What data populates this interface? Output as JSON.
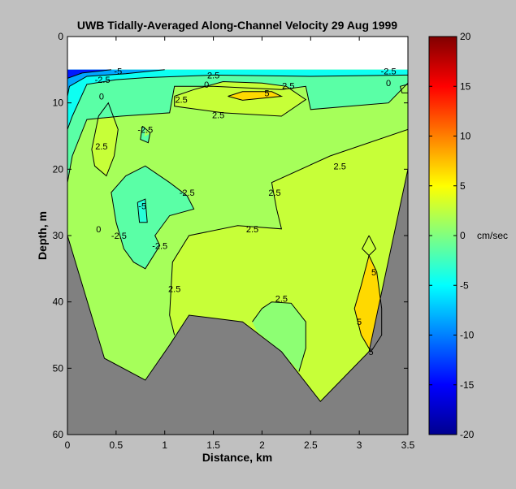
{
  "chart_data": {
    "type": "contour",
    "title": "UWB   Tidally-Averaged  Along-Channel Velocity   29 Aug 1999",
    "xlabel": "Distance, km",
    "ylabel": "Depth, m",
    "xlim": [
      0,
      3.5
    ],
    "ylim": [
      60,
      0
    ],
    "y_reversed": true,
    "x_ticks": [
      "0",
      "0.5",
      "1",
      "1.5",
      "2",
      "2.5",
      "3",
      "3.5"
    ],
    "y_ticks": [
      "0",
      "10",
      "20",
      "30",
      "40",
      "50",
      "60"
    ],
    "x_tick_values": [
      0,
      0.5,
      1,
      1.5,
      2,
      2.5,
      3,
      3.5
    ],
    "y_tick_values": [
      0,
      10,
      20,
      30,
      40,
      50,
      60
    ],
    "colorbar": {
      "label": "cm/sec",
      "range": [
        -20,
        20
      ],
      "ticks": [
        "20",
        "15",
        "10",
        "5",
        "0",
        "-5",
        "-10",
        "-15",
        "-20"
      ],
      "tick_values": [
        20,
        15,
        10,
        5,
        0,
        -5,
        -10,
        -15,
        -20
      ]
    },
    "contour_levels": [
      -5,
      -2.5,
      0,
      2.5,
      5
    ],
    "data_top_depth": 5,
    "bottom_profile": [
      [
        0,
        30
      ],
      [
        0.38,
        48.5
      ],
      [
        0.8,
        51.8
      ],
      [
        1.05,
        46.5
      ],
      [
        1.25,
        42
      ],
      [
        1.8,
        43
      ],
      [
        2.2,
        47.5
      ],
      [
        2.6,
        55
      ],
      [
        3.1,
        47.5
      ],
      [
        3.5,
        20
      ]
    ],
    "regions": [
      {
        "value": 1.5,
        "points": [
          [
            0,
            5
          ],
          [
            3.5,
            5
          ],
          [
            3.5,
            20
          ],
          [
            3.1,
            47.5
          ],
          [
            2.6,
            55
          ],
          [
            2.2,
            47.5
          ],
          [
            1.8,
            43
          ],
          [
            1.25,
            42
          ],
          [
            1.05,
            46.5
          ],
          [
            0.8,
            51.8
          ],
          [
            0.38,
            48.5
          ],
          [
            0,
            30
          ]
        ]
      },
      {
        "value": 2.8,
        "points": [
          [
            3.5,
            14
          ],
          [
            2.7,
            18
          ],
          [
            2.1,
            22
          ],
          [
            2.15,
            26
          ],
          [
            2.2,
            29
          ],
          [
            1.75,
            28.5
          ],
          [
            1.25,
            30
          ],
          [
            1.08,
            34
          ],
          [
            1.05,
            42
          ],
          [
            1.1,
            45
          ],
          [
            1.25,
            42
          ],
          [
            1.8,
            43
          ],
          [
            2.2,
            47.5
          ],
          [
            2.6,
            55
          ],
          [
            3.1,
            47.5
          ],
          [
            3.5,
            20
          ]
        ]
      },
      {
        "value": 0.5,
        "points": [
          [
            1.9,
            43
          ],
          [
            2.0,
            41
          ],
          [
            2.1,
            40
          ],
          [
            2.3,
            40.2
          ],
          [
            2.45,
            43
          ],
          [
            2.45,
            47
          ],
          [
            2.38,
            50.5
          ],
          [
            2.2,
            47.5
          ],
          [
            1.95,
            44.5
          ]
        ]
      },
      {
        "value": 6.5,
        "points": [
          [
            3.1,
            33
          ],
          [
            3.18,
            35.5
          ],
          [
            3.23,
            41
          ],
          [
            3.23,
            45
          ],
          [
            3.12,
            47.5
          ],
          [
            3.02,
            45
          ],
          [
            2.95,
            41
          ],
          [
            3.02,
            37.5
          ]
        ]
      },
      {
        "value": 2.8,
        "points": [
          [
            3.1,
            30
          ],
          [
            3.17,
            32
          ],
          [
            3.1,
            33
          ],
          [
            3.03,
            32
          ]
        ]
      },
      {
        "value": -1.5,
        "points": [
          [
            0.5,
            28
          ],
          [
            0.45,
            23.5
          ],
          [
            0.6,
            21
          ],
          [
            0.8,
            19.5
          ],
          [
            1.05,
            22
          ],
          [
            1.23,
            24
          ],
          [
            1.3,
            26
          ],
          [
            1.05,
            27
          ],
          [
            0.9,
            30
          ],
          [
            0.95,
            31.5
          ],
          [
            0.8,
            35
          ],
          [
            0.68,
            34
          ],
          [
            0.58,
            32
          ]
        ]
      },
      {
        "value": -3.5,
        "points": [
          [
            0.72,
            25
          ],
          [
            0.8,
            24.5
          ],
          [
            0.82,
            28
          ],
          [
            0.74,
            28
          ]
        ]
      },
      {
        "value": 2.8,
        "points": [
          [
            0.25,
            17
          ],
          [
            0.32,
            12
          ],
          [
            0.42,
            10
          ],
          [
            0.52,
            14
          ],
          [
            0.48,
            18
          ],
          [
            0.4,
            21
          ],
          [
            0.28,
            19.5
          ]
        ]
      },
      {
        "value": -1.5,
        "points": [
          [
            0.77,
            13.5
          ],
          [
            0.85,
            14.5
          ],
          [
            0.83,
            16
          ],
          [
            0.75,
            15.5
          ]
        ]
      },
      {
        "value": 1.5,
        "points": [
          [
            0.8,
            14
          ],
          [
            0.85,
            14.6
          ],
          [
            0.79,
            15.1
          ]
        ]
      },
      {
        "value": -1.5,
        "points": [
          [
            0,
            5
          ],
          [
            3.5,
            5
          ],
          [
            3.5,
            7
          ],
          [
            3.3,
            10
          ],
          [
            2.5,
            11
          ],
          [
            2.45,
            7.5
          ],
          [
            2.2,
            8
          ],
          [
            1.5,
            7.5
          ],
          [
            1.1,
            7.5
          ],
          [
            1.05,
            11.5
          ],
          [
            0.55,
            12
          ],
          [
            0.2,
            12.5
          ],
          [
            0.05,
            18
          ],
          [
            0,
            22
          ]
        ]
      },
      {
        "value": 1.5,
        "points": [
          [
            3.42,
            7.5
          ],
          [
            3.5,
            7.2
          ],
          [
            3.5,
            8.5
          ],
          [
            3.44,
            8.5
          ]
        ]
      },
      {
        "value": 2.8,
        "points": [
          [
            1.1,
            9
          ],
          [
            1.3,
            8
          ],
          [
            1.6,
            6.8
          ],
          [
            2.0,
            7
          ],
          [
            2.25,
            7.5
          ],
          [
            2.45,
            9.5
          ],
          [
            2.2,
            12
          ],
          [
            1.6,
            11.5
          ],
          [
            1.1,
            10.5
          ]
        ]
      },
      {
        "value": 6.5,
        "points": [
          [
            1.65,
            9
          ],
          [
            1.8,
            8.3
          ],
          [
            2.1,
            8.3
          ],
          [
            2.2,
            9
          ],
          [
            1.8,
            9.6
          ]
        ]
      },
      {
        "value": -4.5,
        "points": [
          [
            0,
            5
          ],
          [
            3.5,
            5
          ],
          [
            3.5,
            5.8
          ],
          [
            2.5,
            6
          ],
          [
            1.5,
            5.8
          ],
          [
            0.8,
            6.2
          ],
          [
            0.5,
            6.5
          ],
          [
            0.2,
            7.2
          ],
          [
            0.05,
            12
          ],
          [
            0,
            14
          ]
        ]
      },
      {
        "value": -8.5,
        "points": [
          [
            0,
            5
          ],
          [
            1.0,
            5
          ],
          [
            0.6,
            5.6
          ],
          [
            0.2,
            6
          ],
          [
            0.02,
            7.5
          ],
          [
            0,
            9
          ]
        ]
      },
      {
        "value": -14,
        "points": [
          [
            0,
            5
          ],
          [
            0.45,
            5
          ],
          [
            0.15,
            5.5
          ],
          [
            0,
            6.3
          ]
        ]
      }
    ],
    "contour_lines": [
      [
        [
          1.1,
          9
        ],
        [
          1.3,
          8
        ],
        [
          1.6,
          6.8
        ],
        [
          2.0,
          7
        ],
        [
          2.25,
          7.5
        ],
        [
          2.45,
          9.5
        ],
        [
          2.2,
          12
        ],
        [
          1.6,
          11.5
        ],
        [
          1.1,
          10.5
        ],
        [
          1.1,
          9
        ]
      ],
      [
        [
          1.65,
          9
        ],
        [
          1.8,
          8.3
        ],
        [
          2.1,
          8.3
        ],
        [
          2.2,
          9
        ],
        [
          1.8,
          9.6
        ],
        [
          1.65,
          9
        ]
      ],
      [
        [
          3.5,
          14
        ],
        [
          2.7,
          18
        ],
        [
          2.1,
          22
        ],
        [
          2.15,
          26
        ],
        [
          2.2,
          29
        ],
        [
          1.75,
          28.5
        ],
        [
          1.25,
          30
        ],
        [
          1.08,
          34
        ],
        [
          1.05,
          42
        ],
        [
          1.1,
          45
        ]
      ],
      [
        [
          1.9,
          43
        ],
        [
          2.0,
          41
        ],
        [
          2.1,
          40
        ],
        [
          2.3,
          40.2
        ],
        [
          2.45,
          43
        ],
        [
          2.45,
          47
        ],
        [
          2.38,
          50.5
        ]
      ],
      [
        [
          3.1,
          33
        ],
        [
          3.18,
          35.5
        ],
        [
          3.23,
          41
        ],
        [
          3.23,
          45
        ],
        [
          3.12,
          47.5
        ],
        [
          3.02,
          45
        ],
        [
          2.95,
          41
        ],
        [
          3.02,
          37.5
        ],
        [
          3.1,
          33
        ]
      ],
      [
        [
          3.1,
          30
        ],
        [
          3.17,
          32
        ],
        [
          3.1,
          33
        ],
        [
          3.03,
          32
        ],
        [
          3.1,
          30
        ]
      ],
      [
        [
          0.5,
          28
        ],
        [
          0.45,
          23.5
        ],
        [
          0.6,
          21
        ],
        [
          0.8,
          19.5
        ],
        [
          1.05,
          22
        ],
        [
          1.23,
          24
        ],
        [
          1.3,
          26
        ],
        [
          1.05,
          27
        ],
        [
          0.9,
          30
        ],
        [
          0.95,
          31.5
        ],
        [
          0.8,
          35
        ],
        [
          0.68,
          34
        ],
        [
          0.58,
          32
        ],
        [
          0.5,
          28
        ]
      ],
      [
        [
          0.72,
          25
        ],
        [
          0.8,
          24.5
        ],
        [
          0.82,
          28
        ],
        [
          0.74,
          28
        ],
        [
          0.72,
          25
        ]
      ],
      [
        [
          0.25,
          17
        ],
        [
          0.32,
          12
        ],
        [
          0.42,
          10
        ],
        [
          0.52,
          14
        ],
        [
          0.48,
          18
        ],
        [
          0.4,
          21
        ],
        [
          0.28,
          19.5
        ],
        [
          0.25,
          17
        ]
      ],
      [
        [
          0.77,
          13.5
        ],
        [
          0.85,
          14.5
        ],
        [
          0.83,
          16
        ],
        [
          0.75,
          15.5
        ],
        [
          0.77,
          13.5
        ]
      ],
      [
        [
          3.5,
          7
        ],
        [
          3.3,
          10
        ],
        [
          2.5,
          11
        ],
        [
          2.45,
          7.5
        ],
        [
          2.2,
          8
        ],
        [
          1.5,
          7.5
        ],
        [
          1.1,
          7.5
        ],
        [
          1.05,
          11.5
        ],
        [
          0.55,
          12
        ],
        [
          0.2,
          12.5
        ],
        [
          0.05,
          18
        ],
        [
          0,
          22
        ]
      ],
      [
        [
          3.42,
          7.5
        ],
        [
          3.5,
          7.2
        ],
        [
          3.5,
          8.5
        ],
        [
          3.44,
          8.5
        ],
        [
          3.42,
          7.5
        ]
      ],
      [
        [
          3.5,
          5.8
        ],
        [
          2.5,
          6
        ],
        [
          1.5,
          5.8
        ],
        [
          0.8,
          6.2
        ],
        [
          0.5,
          6.5
        ],
        [
          0.2,
          7.2
        ],
        [
          0.05,
          12
        ],
        [
          0,
          14
        ]
      ],
      [
        [
          1.0,
          5
        ],
        [
          0.6,
          5.6
        ],
        [
          0.2,
          6
        ],
        [
          0.02,
          7.5
        ],
        [
          0,
          9
        ]
      ],
      [
        [
          0.45,
          5
        ],
        [
          0.15,
          5.5
        ],
        [
          0,
          6.3
        ]
      ]
    ],
    "contour_labels": [
      {
        "text": "-5",
        "x": 0.52,
        "y": 5.2
      },
      {
        "text": "-2.5",
        "x": 0.36,
        "y": 6.5
      },
      {
        "text": "0",
        "x": 0.35,
        "y": 9
      },
      {
        "text": "0",
        "x": 3.3,
        "y": 7
      },
      {
        "text": "-2.5",
        "x": 3.3,
        "y": 5.2
      },
      {
        "text": "2.5",
        "x": 1.5,
        "y": 5.8
      },
      {
        "text": "0",
        "x": 1.43,
        "y": 7.2
      },
      {
        "text": "2.5",
        "x": 1.17,
        "y": 9.5
      },
      {
        "text": "5",
        "x": 2.05,
        "y": 8.5
      },
      {
        "text": "2.5",
        "x": 2.27,
        "y": 7.4
      },
      {
        "text": "2.5",
        "x": 1.55,
        "y": 11.8
      },
      {
        "text": "2.5",
        "x": 0.35,
        "y": 16.5
      },
      {
        "text": "-2.5",
        "x": 0.8,
        "y": 14
      },
      {
        "text": "2.5",
        "x": 2.8,
        "y": 19.5
      },
      {
        "text": "2.5",
        "x": 2.13,
        "y": 23.5
      },
      {
        "text": "-2.5",
        "x": 1.23,
        "y": 23.5
      },
      {
        "text": "-5",
        "x": 0.77,
        "y": 25.5
      },
      {
        "text": "0",
        "x": 0.32,
        "y": 29
      },
      {
        "text": "-2.5",
        "x": 0.53,
        "y": 30
      },
      {
        "text": "-2.5",
        "x": 0.95,
        "y": 31.5
      },
      {
        "text": "2.5",
        "x": 1.9,
        "y": 29
      },
      {
        "text": "2.5",
        "x": 1.1,
        "y": 38
      },
      {
        "text": "2.5",
        "x": 2.2,
        "y": 39.5
      },
      {
        "text": "5",
        "x": 3.15,
        "y": 35.5
      },
      {
        "text": "5",
        "x": 3.0,
        "y": 43
      },
      {
        "text": "5",
        "x": 3.12,
        "y": 47.5
      }
    ]
  }
}
